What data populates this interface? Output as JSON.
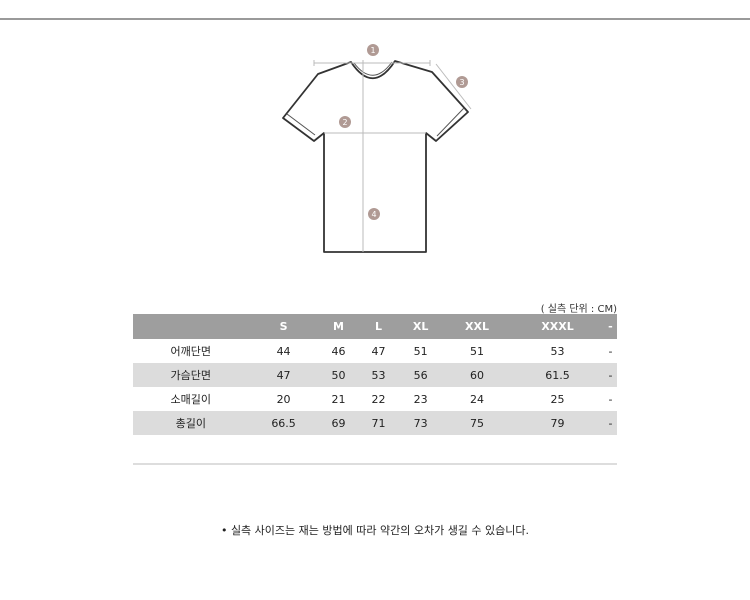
{
  "diagram": {
    "markers": [
      "1",
      "2",
      "3",
      "4"
    ],
    "marker_color": "#b09a94"
  },
  "table": {
    "unit_note": "( 실측 단위 : CM)",
    "headers": [
      "",
      "S",
      "M",
      "L",
      "XL",
      "XXL",
      "XXXL",
      "-"
    ],
    "rows": [
      {
        "label": "어깨단면",
        "values": [
          "44",
          "46",
          "47",
          "51",
          "51",
          "53",
          "-"
        ]
      },
      {
        "label": "가슴단면",
        "values": [
          "47",
          "50",
          "53",
          "56",
          "60",
          "61.5",
          "-"
        ]
      },
      {
        "label": "소매길이",
        "values": [
          "20",
          "21",
          "22",
          "23",
          "24",
          "25",
          "-"
        ]
      },
      {
        "label": "총길이",
        "values": [
          "66.5",
          "69",
          "71",
          "73",
          "75",
          "79",
          "-"
        ]
      }
    ]
  },
  "note": "• 실측 사이즈는 재는 방법에 따라 약간의 오차가 생길 수 있습니다."
}
